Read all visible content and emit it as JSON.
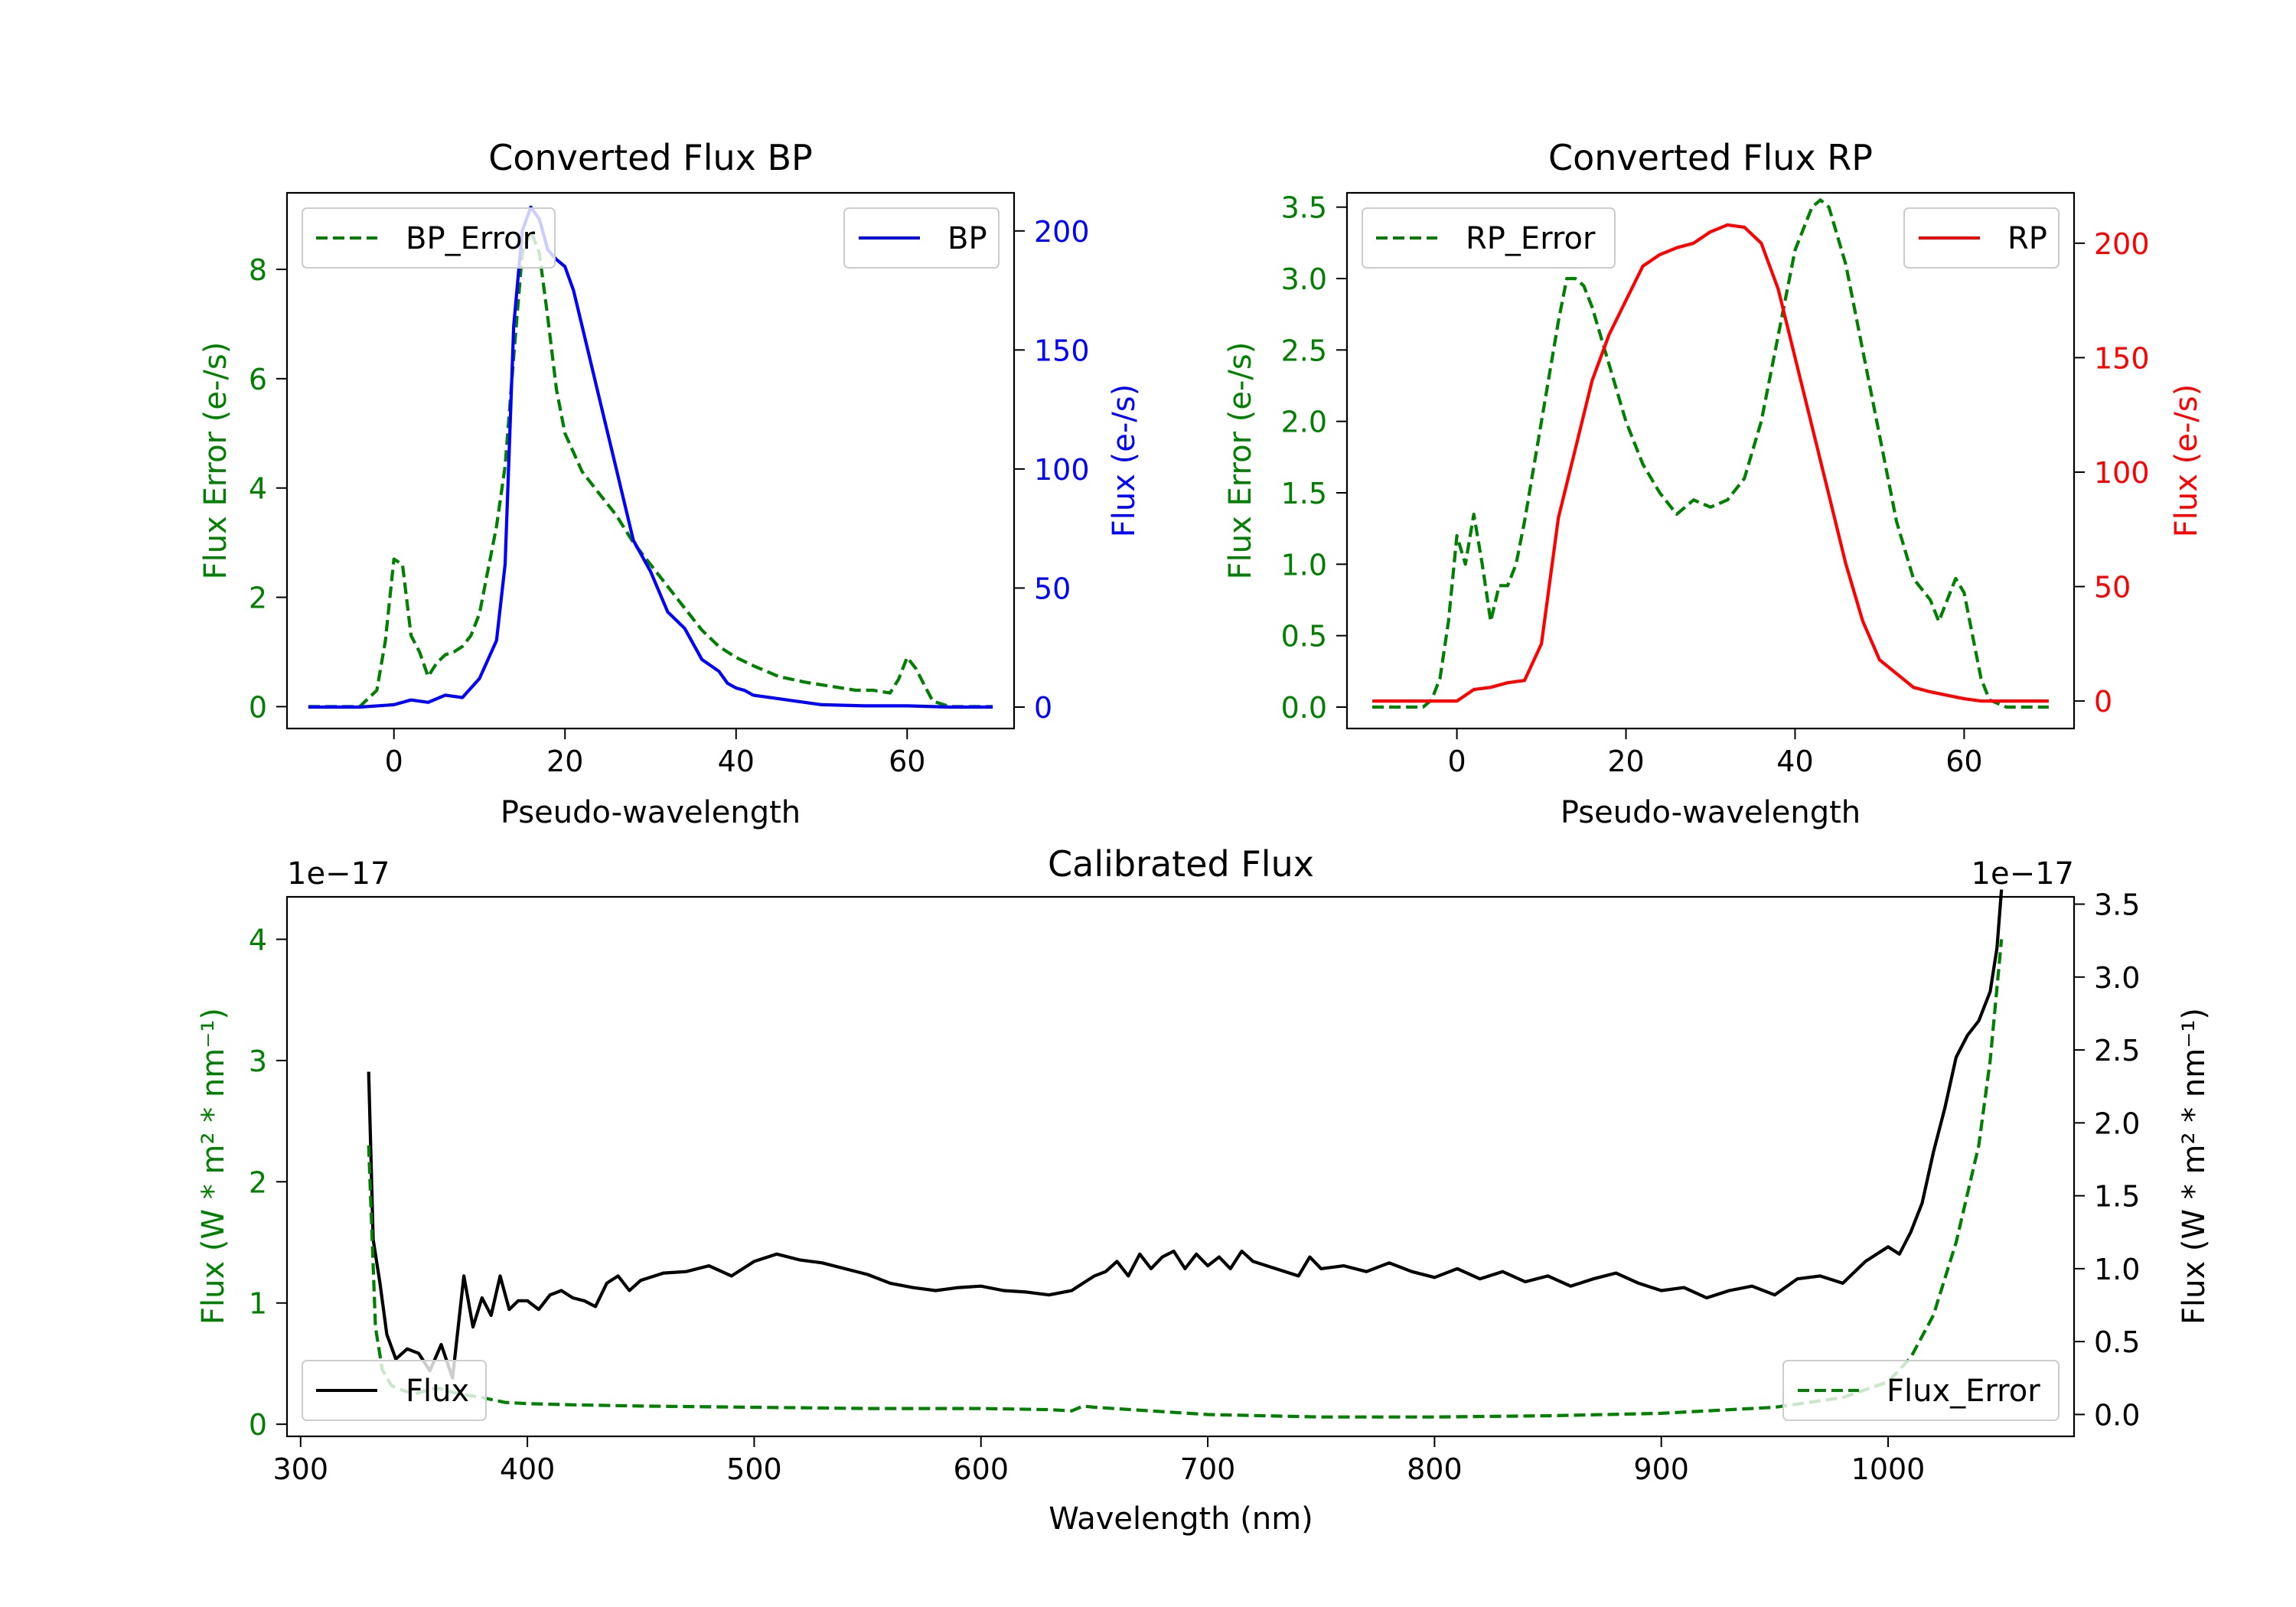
{
  "colors": {
    "green": "#008000",
    "blue": "#0000ff",
    "red": "#ff0000",
    "black": "#000000"
  },
  "chart_data": [
    {
      "id": "bp",
      "type": "line",
      "title": "Converted Flux BP",
      "xlabel": "Pseudo-wavelength",
      "ylabel_left": "Flux Error (e-/s)",
      "ylabel_right": "Flux (e-/s)",
      "xlim": [
        -12.5,
        72.5
      ],
      "ylim_left": [
        -0.4,
        9.4
      ],
      "ylim_right": [
        -9,
        216
      ],
      "xticks": [
        0,
        20,
        40,
        60
      ],
      "yticks_left": [
        0,
        2,
        4,
        6,
        8
      ],
      "yticks_right": [
        0,
        50,
        100,
        150,
        200
      ],
      "legend_left": "top-left",
      "legend_right": "top-right",
      "series": [
        {
          "name": "BP_Error",
          "axis": "left",
          "style": "dashed",
          "color": "#008000",
          "x": [
            -10,
            -4,
            -2,
            -1,
            0,
            1,
            2,
            3,
            4,
            5,
            6,
            7,
            8,
            9,
            10,
            11,
            12,
            13,
            14,
            15,
            16,
            17,
            18,
            19,
            20,
            22,
            24,
            26,
            28,
            30,
            32,
            34,
            36,
            38,
            40,
            42,
            45,
            48,
            50,
            52,
            54,
            56,
            58,
            59,
            60,
            61,
            62,
            63,
            65,
            70
          ],
          "y": [
            0,
            0,
            0.3,
            1.2,
            2.7,
            2.6,
            1.3,
            1.0,
            0.55,
            0.8,
            0.95,
            1.0,
            1.1,
            1.3,
            1.7,
            2.5,
            3.3,
            4.4,
            6.4,
            8.3,
            8.7,
            8.3,
            7.1,
            5.8,
            5.0,
            4.3,
            3.9,
            3.5,
            3.0,
            2.6,
            2.2,
            1.8,
            1.4,
            1.1,
            0.9,
            0.75,
            0.55,
            0.45,
            0.4,
            0.35,
            0.3,
            0.3,
            0.25,
            0.5,
            0.9,
            0.7,
            0.4,
            0.1,
            0,
            0
          ]
        },
        {
          "name": "BP",
          "axis": "right",
          "style": "solid",
          "color": "#0000ff",
          "x": [
            -10,
            -4,
            0,
            2,
            4,
            6,
            8,
            10,
            12,
            13,
            14,
            15,
            16,
            17,
            18,
            19,
            20,
            21,
            22,
            24,
            26,
            28,
            30,
            32,
            34,
            36,
            38,
            39,
            40,
            41,
            42,
            44,
            46,
            48,
            50,
            55,
            60,
            65,
            70
          ],
          "y": [
            0,
            0,
            1,
            3,
            2,
            5,
            4,
            12,
            28,
            60,
            160,
            200,
            210,
            205,
            192,
            188,
            185,
            175,
            160,
            130,
            100,
            70,
            57,
            40,
            33,
            20,
            15,
            10,
            8,
            7,
            5,
            4,
            3,
            2,
            1,
            0.5,
            0.5,
            0,
            0
          ]
        }
      ]
    },
    {
      "id": "rp",
      "type": "line",
      "title": "Converted Flux RP",
      "xlabel": "Pseudo-wavelength",
      "ylabel_left": "Flux Error (e-/s)",
      "ylabel_right": "Flux (e-/s)",
      "xlim": [
        -13,
        73
      ],
      "ylim_left": [
        -0.15,
        3.6
      ],
      "ylim_right": [
        -12,
        222
      ],
      "xticks": [
        0,
        20,
        40,
        60
      ],
      "yticks_left": [
        "0.0",
        "0.5",
        "1.0",
        "1.5",
        "2.0",
        "2.5",
        "3.0",
        "3.5"
      ],
      "yticks_right": [
        0,
        50,
        100,
        150,
        200
      ],
      "legend_left": "top-left",
      "legend_right": "top-right",
      "series": [
        {
          "name": "RP_Error",
          "axis": "left",
          "style": "dashed",
          "color": "#008000",
          "x": [
            -10,
            -4,
            -3,
            -2,
            -1,
            0,
            1,
            2,
            3,
            4,
            5,
            6,
            7,
            8,
            10,
            12,
            13,
            14,
            15,
            16,
            18,
            20,
            22,
            24,
            26,
            28,
            30,
            32,
            34,
            36,
            38,
            40,
            42,
            43,
            44,
            46,
            48,
            50,
            52,
            54,
            56,
            57,
            58,
            59,
            60,
            61,
            62,
            63,
            65,
            70
          ],
          "y": [
            0,
            0,
            0.05,
            0.2,
            0.6,
            1.2,
            1.0,
            1.35,
            1.0,
            0.6,
            0.85,
            0.85,
            1.0,
            1.3,
            2.0,
            2.7,
            3.0,
            3.0,
            2.95,
            2.8,
            2.4,
            2.0,
            1.7,
            1.5,
            1.35,
            1.45,
            1.4,
            1.45,
            1.6,
            2.0,
            2.6,
            3.2,
            3.5,
            3.55,
            3.5,
            3.1,
            2.5,
            1.9,
            1.3,
            0.9,
            0.75,
            0.6,
            0.75,
            0.9,
            0.8,
            0.5,
            0.2,
            0.05,
            0,
            0
          ]
        },
        {
          "name": "RP",
          "axis": "right",
          "style": "solid",
          "color": "#ff0000",
          "x": [
            -10,
            -4,
            0,
            2,
            4,
            6,
            8,
            10,
            12,
            14,
            16,
            18,
            20,
            22,
            24,
            26,
            28,
            30,
            32,
            34,
            36,
            38,
            40,
            42,
            44,
            46,
            48,
            50,
            52,
            54,
            56,
            60,
            62,
            65,
            70
          ],
          "y": [
            0,
            0,
            0,
            5,
            6,
            8,
            9,
            25,
            80,
            110,
            140,
            160,
            175,
            190,
            195,
            198,
            200,
            205,
            208,
            207,
            200,
            180,
            150,
            120,
            90,
            60,
            35,
            18,
            12,
            6,
            4,
            1,
            0,
            0,
            0
          ]
        }
      ]
    },
    {
      "id": "calibrated",
      "type": "line",
      "title": "Calibrated Flux",
      "xlabel": "Wavelength (nm)",
      "ylabel_left": "Flux (W * m² * nm⁻¹)",
      "ylabel_right": "Flux (W * m² * nm⁻¹)",
      "offset_left": "1e−17",
      "offset_right": "1e−17",
      "xlim": [
        294,
        1082
      ],
      "ylim_left": [
        -0.1,
        4.35
      ],
      "ylim_right": [
        -0.15,
        3.55
      ],
      "xticks": [
        300,
        400,
        500,
        600,
        700,
        800,
        900,
        1000
      ],
      "yticks_left": [
        0,
        1,
        2,
        3,
        4
      ],
      "yticks_right": [
        "0.0",
        "0.5",
        "1.0",
        "1.5",
        "2.0",
        "2.5",
        "3.0",
        "3.5"
      ],
      "legend_left": "lower-left",
      "legend_right": "lower-right",
      "series": [
        {
          "name": "Flux",
          "axis": "right",
          "style": "solid",
          "color": "#000000",
          "x": [
            330,
            332,
            335,
            338,
            342,
            347,
            352,
            357,
            362,
            367,
            372,
            376,
            380,
            384,
            388,
            392,
            396,
            400,
            405,
            410,
            415,
            420,
            425,
            430,
            435,
            440,
            445,
            450,
            460,
            470,
            480,
            490,
            500,
            510,
            520,
            530,
            540,
            550,
            560,
            570,
            580,
            590,
            600,
            610,
            620,
            630,
            640,
            645,
            650,
            655,
            660,
            665,
            670,
            675,
            680,
            685,
            690,
            695,
            700,
            705,
            710,
            715,
            720,
            730,
            740,
            745,
            750,
            760,
            770,
            780,
            790,
            800,
            810,
            820,
            830,
            840,
            850,
            860,
            870,
            880,
            890,
            900,
            910,
            920,
            930,
            940,
            950,
            960,
            970,
            980,
            990,
            1000,
            1005,
            1010,
            1015,
            1020,
            1025,
            1030,
            1035,
            1040,
            1045,
            1048,
            1050
          ],
          "y": [
            2.35,
            1.2,
            0.9,
            0.55,
            0.38,
            0.45,
            0.42,
            0.3,
            0.48,
            0.25,
            0.95,
            0.6,
            0.8,
            0.68,
            0.95,
            0.72,
            0.78,
            0.78,
            0.72,
            0.82,
            0.85,
            0.8,
            0.78,
            0.74,
            0.9,
            0.95,
            0.85,
            0.92,
            0.97,
            0.98,
            1.02,
            0.95,
            1.05,
            1.1,
            1.06,
            1.04,
            1.0,
            0.96,
            0.9,
            0.87,
            0.85,
            0.87,
            0.88,
            0.85,
            0.84,
            0.82,
            0.85,
            0.9,
            0.95,
            0.98,
            1.05,
            0.95,
            1.1,
            1.0,
            1.08,
            1.12,
            1.0,
            1.1,
            1.02,
            1.08,
            1.0,
            1.12,
            1.05,
            1.0,
            0.95,
            1.08,
            1.0,
            1.02,
            0.98,
            1.04,
            0.98,
            0.94,
            1.0,
            0.93,
            0.98,
            0.91,
            0.95,
            0.88,
            0.93,
            0.97,
            0.9,
            0.85,
            0.87,
            0.8,
            0.85,
            0.88,
            0.82,
            0.93,
            0.95,
            0.9,
            1.05,
            1.15,
            1.1,
            1.25,
            1.45,
            1.8,
            2.1,
            2.45,
            2.6,
            2.7,
            2.9,
            3.2,
            3.6
          ]
        },
        {
          "name": "Flux_Error",
          "axis": "left",
          "style": "dashed",
          "color": "#008000",
          "x": [
            330,
            333,
            336,
            340,
            345,
            350,
            360,
            370,
            380,
            390,
            400,
            420,
            450,
            500,
            550,
            600,
            630,
            640,
            645,
            650,
            700,
            750,
            800,
            850,
            900,
            950,
            980,
            1000,
            1010,
            1020,
            1030,
            1040,
            1045,
            1050
          ],
          "y": [
            2.3,
            0.8,
            0.45,
            0.32,
            0.28,
            0.25,
            0.3,
            0.25,
            0.22,
            0.18,
            0.17,
            0.16,
            0.15,
            0.14,
            0.13,
            0.13,
            0.12,
            0.11,
            0.15,
            0.14,
            0.08,
            0.06,
            0.06,
            0.07,
            0.09,
            0.14,
            0.22,
            0.35,
            0.55,
            0.9,
            1.5,
            2.3,
            3.0,
            4.0
          ]
        }
      ]
    }
  ]
}
